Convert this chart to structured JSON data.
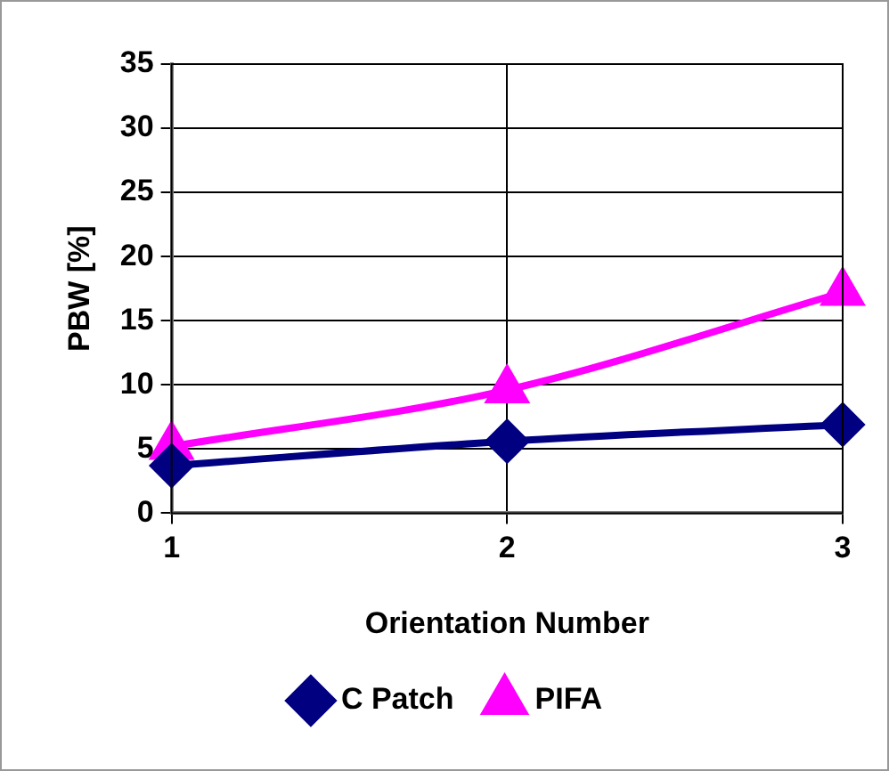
{
  "chart_data": {
    "type": "line",
    "xlabel": "Orientation Number",
    "ylabel": "PBW [%]",
    "x": [
      1,
      2,
      3
    ],
    "xlim": [
      1,
      3
    ],
    "xticks": [
      1,
      2,
      3
    ],
    "ylim": [
      0,
      35
    ],
    "yticks": [
      0,
      5,
      10,
      15,
      20,
      25,
      30,
      35
    ],
    "series": [
      {
        "name": "C Patch",
        "color": "#000080",
        "values": [
          3.7,
          5.6,
          6.9
        ],
        "marker": "diamond"
      },
      {
        "name": "PIFA",
        "color": "#ff00ff",
        "values": [
          5.2,
          9.6,
          17.2
        ],
        "marker": "triangle"
      }
    ],
    "grid": true,
    "legend": "bottom",
    "line_style": "solid"
  }
}
